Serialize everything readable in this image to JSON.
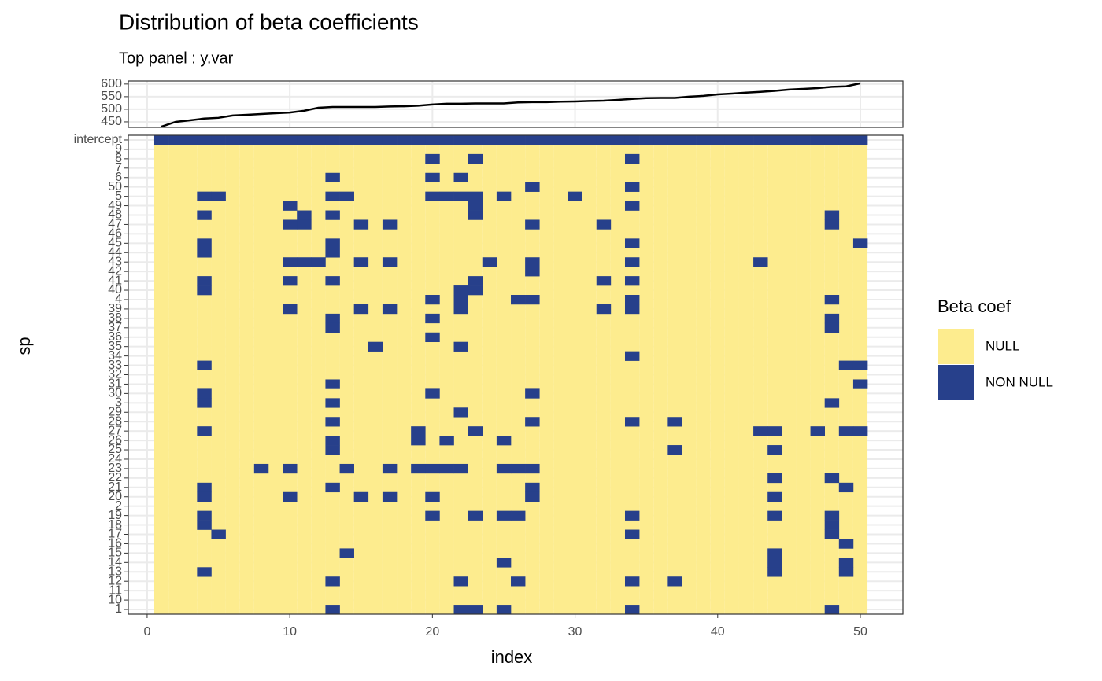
{
  "chart_data": [
    {
      "type": "line",
      "title": "Distribution of beta coefficients",
      "subtitle": "Top panel : y.var",
      "x": [
        1,
        2,
        3,
        4,
        5,
        6,
        7,
        8,
        9,
        10,
        11,
        12,
        13,
        14,
        15,
        16,
        17,
        18,
        19,
        20,
        21,
        22,
        23,
        24,
        25,
        26,
        27,
        28,
        29,
        30,
        31,
        32,
        33,
        34,
        35,
        36,
        37,
        38,
        39,
        40,
        41,
        42,
        43,
        44,
        45,
        46,
        47,
        48,
        49,
        50
      ],
      "values": [
        431,
        450,
        456,
        463,
        466,
        475,
        478,
        481,
        484,
        487,
        494,
        506,
        509,
        509,
        509,
        509,
        511,
        512,
        514,
        519,
        522,
        522,
        523,
        523,
        523,
        527,
        528,
        528,
        530,
        531,
        533,
        534,
        537,
        541,
        544,
        545,
        545,
        550,
        553,
        559,
        562,
        566,
        569,
        573,
        578,
        581,
        584,
        589,
        591,
        603
      ],
      "color": "#000000",
      "xlim": [
        -1.32,
        52.98
      ],
      "xticks": [
        0,
        10,
        20,
        30,
        40,
        50
      ],
      "ylim": [
        428,
        612
      ],
      "yticks": [
        450,
        500,
        550,
        600
      ],
      "grid": true
    },
    {
      "type": "heatmap",
      "x_label": "index",
      "y_label": "sp",
      "legend_title": "Beta coef",
      "x": [
        1,
        2,
        3,
        4,
        5,
        6,
        7,
        8,
        9,
        10,
        11,
        12,
        13,
        14,
        15,
        16,
        17,
        18,
        19,
        20,
        21,
        22,
        23,
        24,
        25,
        26,
        27,
        28,
        29,
        30,
        31,
        32,
        33,
        34,
        35,
        36,
        37,
        38,
        39,
        40,
        41,
        42,
        43,
        44,
        45,
        46,
        47,
        48,
        49,
        50
      ],
      "xlim": [
        -1.32,
        52.98
      ],
      "xticks": [
        0,
        10,
        20,
        30,
        40,
        50
      ],
      "grid": true,
      "series": [
        {
          "name": "NULL",
          "color": "#FDEC8E"
        },
        {
          "name": "NON NULL",
          "color": "#27408B"
        }
      ],
      "rows": [
        {
          "name": "intercept",
          "nonnull": [
            1,
            2,
            3,
            4,
            5,
            6,
            7,
            8,
            9,
            10,
            11,
            12,
            13,
            14,
            15,
            16,
            17,
            18,
            19,
            20,
            21,
            22,
            23,
            24,
            25,
            26,
            27,
            28,
            29,
            30,
            31,
            32,
            33,
            34,
            35,
            36,
            37,
            38,
            39,
            40,
            41,
            42,
            43,
            44,
            45,
            46,
            47,
            48,
            49,
            50
          ]
        },
        {
          "name": "9",
          "nonnull": []
        },
        {
          "name": "8",
          "nonnull": [
            20,
            23,
            34
          ]
        },
        {
          "name": "7",
          "nonnull": []
        },
        {
          "name": "6",
          "nonnull": [
            13,
            20,
            22
          ]
        },
        {
          "name": "50",
          "nonnull": [
            27,
            34
          ]
        },
        {
          "name": "5",
          "nonnull": [
            4,
            5,
            13,
            14,
            20,
            21,
            22,
            23,
            25,
            30
          ]
        },
        {
          "name": "49",
          "nonnull": [
            10,
            23,
            34
          ]
        },
        {
          "name": "48",
          "nonnull": [
            4,
            11,
            13,
            23,
            48
          ]
        },
        {
          "name": "47",
          "nonnull": [
            10,
            11,
            15,
            17,
            27,
            32,
            48
          ]
        },
        {
          "name": "46",
          "nonnull": []
        },
        {
          "name": "45",
          "nonnull": [
            4,
            13,
            34,
            50
          ]
        },
        {
          "name": "44",
          "nonnull": [
            4,
            13
          ]
        },
        {
          "name": "43",
          "nonnull": [
            10,
            11,
            12,
            15,
            17,
            24,
            27,
            34,
            43
          ]
        },
        {
          "name": "42",
          "nonnull": [
            27
          ]
        },
        {
          "name": "41",
          "nonnull": [
            4,
            10,
            13,
            23,
            32,
            34
          ]
        },
        {
          "name": "40",
          "nonnull": [
            4,
            22,
            23
          ]
        },
        {
          "name": "4",
          "nonnull": [
            20,
            22,
            26,
            27,
            34,
            48
          ]
        },
        {
          "name": "39",
          "nonnull": [
            10,
            15,
            17,
            22,
            32,
            34
          ]
        },
        {
          "name": "38",
          "nonnull": [
            13,
            20,
            48
          ]
        },
        {
          "name": "37",
          "nonnull": [
            13,
            48
          ]
        },
        {
          "name": "36",
          "nonnull": [
            20
          ]
        },
        {
          "name": "35",
          "nonnull": [
            16,
            22
          ]
        },
        {
          "name": "34",
          "nonnull": [
            34
          ]
        },
        {
          "name": "33",
          "nonnull": [
            4,
            49,
            50
          ]
        },
        {
          "name": "32",
          "nonnull": []
        },
        {
          "name": "31",
          "nonnull": [
            13,
            50
          ]
        },
        {
          "name": "30",
          "nonnull": [
            4,
            20,
            27
          ]
        },
        {
          "name": "3",
          "nonnull": [
            4,
            13,
            48
          ]
        },
        {
          "name": "29",
          "nonnull": [
            22
          ]
        },
        {
          "name": "28",
          "nonnull": [
            13,
            27,
            34,
            37
          ]
        },
        {
          "name": "27",
          "nonnull": [
            4,
            19,
            23,
            43,
            44,
            47,
            49,
            50
          ]
        },
        {
          "name": "26",
          "nonnull": [
            13,
            19,
            21,
            25
          ]
        },
        {
          "name": "25",
          "nonnull": [
            13,
            37,
            44
          ]
        },
        {
          "name": "24",
          "nonnull": []
        },
        {
          "name": "23",
          "nonnull": [
            8,
            10,
            14,
            17,
            19,
            20,
            21,
            22,
            25,
            26,
            27
          ]
        },
        {
          "name": "22",
          "nonnull": [
            44,
            48
          ]
        },
        {
          "name": "21",
          "nonnull": [
            4,
            13,
            27,
            49
          ]
        },
        {
          "name": "20",
          "nonnull": [
            4,
            10,
            15,
            17,
            20,
            27,
            44
          ]
        },
        {
          "name": "2",
          "nonnull": []
        },
        {
          "name": "19",
          "nonnull": [
            4,
            20,
            23,
            25,
            26,
            34,
            44,
            48
          ]
        },
        {
          "name": "18",
          "nonnull": [
            4,
            48
          ]
        },
        {
          "name": "17",
          "nonnull": [
            5,
            34,
            48
          ]
        },
        {
          "name": "16",
          "nonnull": [
            49
          ]
        },
        {
          "name": "15",
          "nonnull": [
            14,
            44
          ]
        },
        {
          "name": "14",
          "nonnull": [
            25,
            44,
            49
          ]
        },
        {
          "name": "13",
          "nonnull": [
            4,
            44,
            49
          ]
        },
        {
          "name": "12",
          "nonnull": [
            13,
            22,
            26,
            34,
            37
          ]
        },
        {
          "name": "11",
          "nonnull": []
        },
        {
          "name": "10",
          "nonnull": []
        },
        {
          "name": "1",
          "nonnull": [
            13,
            22,
            23,
            25,
            34,
            48
          ]
        }
      ]
    }
  ]
}
